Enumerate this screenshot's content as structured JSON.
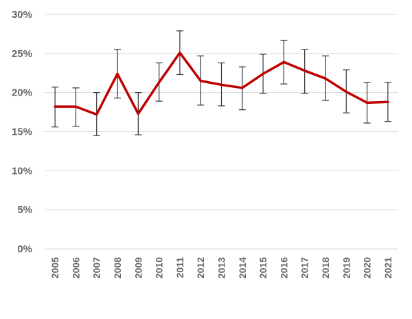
{
  "chart_data": {
    "type": "line",
    "title": "",
    "xlabel": "",
    "ylabel": "",
    "x": [
      "2005",
      "2006",
      "2007",
      "2008",
      "2009",
      "2010",
      "2011",
      "2012",
      "2013",
      "2014",
      "2015",
      "2016",
      "2017",
      "2018",
      "2019",
      "2020",
      "2021"
    ],
    "series": [
      {
        "color": "#c00000",
        "values": [
          18.2,
          18.2,
          17.2,
          22.4,
          17.3,
          21.3,
          25.1,
          21.5,
          21.0,
          20.6,
          22.4,
          23.9,
          22.8,
          21.8,
          20.1,
          18.7,
          18.8
        ],
        "error_low": [
          15.6,
          15.7,
          14.5,
          19.3,
          14.6,
          18.9,
          22.3,
          18.4,
          18.3,
          17.8,
          19.9,
          21.1,
          19.9,
          19.0,
          17.4,
          16.1,
          16.3
        ],
        "error_high": [
          20.7,
          20.6,
          20.0,
          25.5,
          20.0,
          23.8,
          27.9,
          24.7,
          23.8,
          23.3,
          24.9,
          26.7,
          25.5,
          24.7,
          22.9,
          21.3,
          21.3
        ]
      }
    ],
    "ylim": [
      0,
      30
    ],
    "yticks": [
      0,
      5,
      10,
      15,
      20,
      25,
      30
    ],
    "ytick_labels": [
      "0%",
      "5%",
      "10%",
      "15%",
      "20%",
      "25%",
      "30%"
    ],
    "grid": true,
    "legend": "none"
  }
}
